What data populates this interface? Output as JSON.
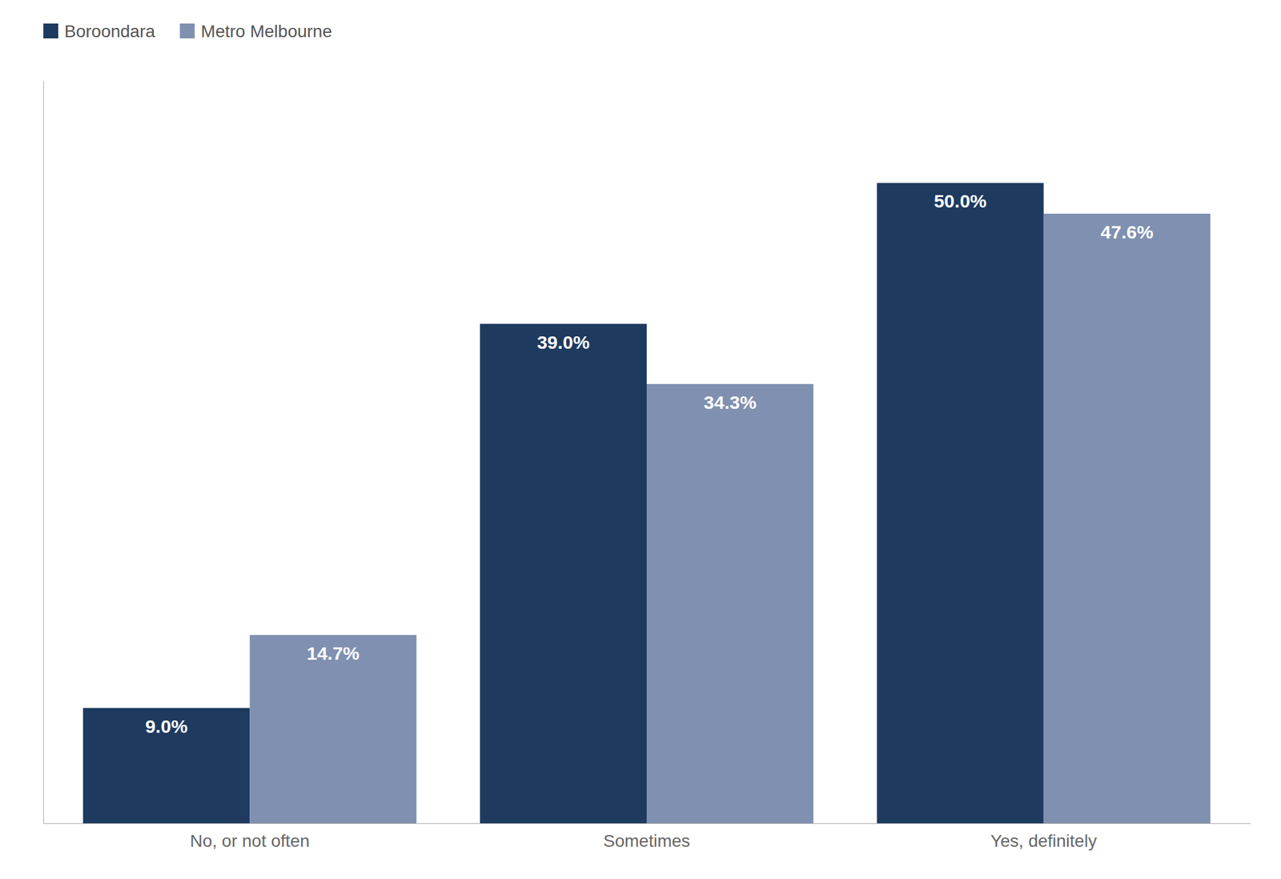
{
  "chart_data": {
    "type": "bar",
    "categories": [
      "No, or not often",
      "Sometimes",
      "Yes, definitely"
    ],
    "series": [
      {
        "name": "Boroondara",
        "color": "#1e3a5f",
        "values": [
          9.0,
          39.0,
          50.0
        ],
        "value_labels": [
          "9.0%",
          "39.0%",
          "50.0%"
        ]
      },
      {
        "name": "Metro Melbourne",
        "color": "#8090b0",
        "values": [
          14.7,
          34.3,
          47.6
        ],
        "value_labels": [
          "14.7%",
          "34.3%",
          "47.6%"
        ]
      }
    ],
    "ylim": [
      0,
      58
    ],
    "data_labels": true,
    "tick_labels": "x",
    "grid": false,
    "legend": "upper left"
  }
}
